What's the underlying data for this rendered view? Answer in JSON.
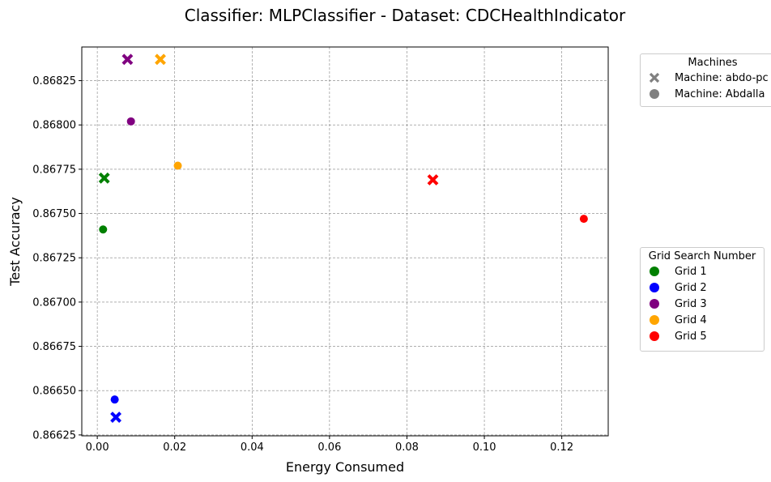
{
  "chart_data": {
    "type": "scatter",
    "title": "Classifier: MLPClassifier - Dataset: CDCHealthIndicator",
    "xlabel": "Energy Consumed",
    "ylabel": "Test Accuracy",
    "xlim": [
      -0.004,
      0.132
    ],
    "ylim": [
      0.866245,
      0.86844
    ],
    "xticks": [
      "0.00",
      "0.02",
      "0.04",
      "0.06",
      "0.08",
      "0.10",
      "0.12"
    ],
    "xtick_values": [
      0.0,
      0.02,
      0.04,
      0.06,
      0.08,
      0.1,
      0.12
    ],
    "yticks": [
      "0.86625",
      "0.86650",
      "0.86675",
      "0.86700",
      "0.86725",
      "0.86750",
      "0.86775",
      "0.86800",
      "0.86825"
    ],
    "ytick_values": [
      0.86625,
      0.8665,
      0.86675,
      0.867,
      0.86725,
      0.8675,
      0.86775,
      0.868,
      0.86825
    ],
    "grid": true,
    "points": [
      {
        "grid": "Grid 1",
        "machine": "Machine: abdo-pc",
        "x": 0.0018,
        "y": 0.8677
      },
      {
        "grid": "Grid 1",
        "machine": "Machine: Abdalla",
        "x": 0.0015,
        "y": 0.86741
      },
      {
        "grid": "Grid 2",
        "machine": "Machine: abdo-pc",
        "x": 0.0048,
        "y": 0.86635
      },
      {
        "grid": "Grid 2",
        "machine": "Machine: Abdalla",
        "x": 0.0045,
        "y": 0.86645
      },
      {
        "grid": "Grid 3",
        "machine": "Machine: abdo-pc",
        "x": 0.0078,
        "y": 0.86837
      },
      {
        "grid": "Grid 3",
        "machine": "Machine: Abdalla",
        "x": 0.0087,
        "y": 0.86802
      },
      {
        "grid": "Grid 4",
        "machine": "Machine: abdo-pc",
        "x": 0.0163,
        "y": 0.86837
      },
      {
        "grid": "Grid 4",
        "machine": "Machine: Abdalla",
        "x": 0.0208,
        "y": 0.86777
      },
      {
        "grid": "Grid 5",
        "machine": "Machine: abdo-pc",
        "x": 0.0867,
        "y": 0.86769
      },
      {
        "grid": "Grid 5",
        "machine": "Machine: Abdalla",
        "x": 0.1257,
        "y": 0.86747
      }
    ],
    "grid_colors": {
      "Grid 1": "#008000",
      "Grid 2": "#0000ff",
      "Grid 3": "#800080",
      "Grid 4": "#ffa500",
      "Grid 5": "#ff0000"
    },
    "machine_markers": {
      "Machine: abdo-pc": "x",
      "Machine: Abdalla": "circle"
    },
    "legend_machines": {
      "title": "Machines",
      "placement": "outside-top-right",
      "entries": [
        {
          "label": "Machine: abdo-pc",
          "marker": "x",
          "color": "#808080"
        },
        {
          "label": "Machine: Abdalla",
          "marker": "circle",
          "color": "#808080"
        }
      ]
    },
    "legend_grids": {
      "title": "Grid Search Number",
      "placement": "outside-middle-right",
      "entries": [
        {
          "label": "Grid 1",
          "color": "#008000"
        },
        {
          "label": "Grid 2",
          "color": "#0000ff"
        },
        {
          "label": "Grid 3",
          "color": "#800080"
        },
        {
          "label": "Grid 4",
          "color": "#ffa500"
        },
        {
          "label": "Grid 5",
          "color": "#ff0000"
        }
      ]
    }
  }
}
